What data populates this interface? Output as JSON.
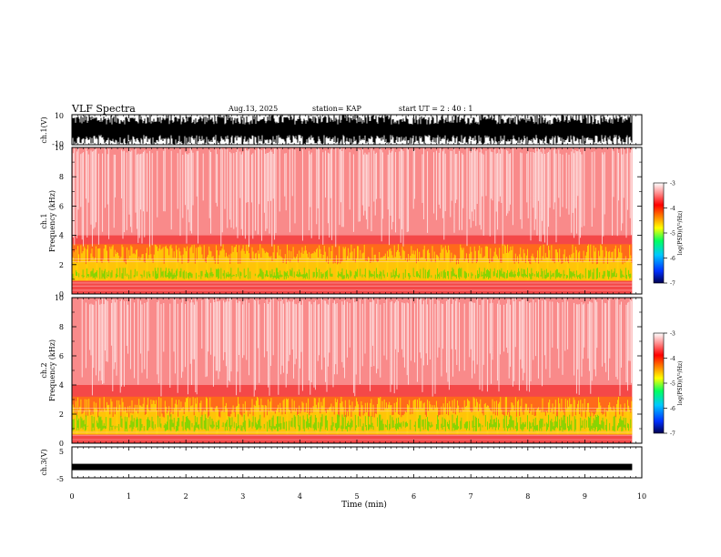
{
  "header": {
    "title": "VLF Spectra",
    "date": "Aug.13, 2025",
    "station": "station= KAP",
    "start": "start  UT =   2 : 40 : 1"
  },
  "chart_data": {
    "type": "heatmap",
    "time_axis": {
      "label": "Time  (min)",
      "range": [
        0,
        10
      ],
      "ticks": [
        "0",
        "1",
        "2",
        "3",
        "4",
        "5",
        "6",
        "7",
        "8",
        "9",
        "10"
      ],
      "data_end": 9.83
    },
    "panels": [
      {
        "id": "ch1-waveform",
        "type": "line",
        "ylabel": "ch.1(V)",
        "ylim": [
          -10,
          10
        ],
        "tick_labels": [
          "10",
          "-10"
        ],
        "description_values": {
          "amplitude_min": -10,
          "amplitude_max": 10
        }
      },
      {
        "id": "ch1-spectrogram",
        "type": "heatmap",
        "ylabel": "ch.1\nFrequency  (kHz)",
        "ylabel_lines": [
          "ch.1",
          "Frequency  (kHz)"
        ],
        "ylim": [
          0,
          10
        ],
        "tick_labels": [
          "10",
          "8",
          "6",
          "4",
          "2",
          "0"
        ],
        "yellow_band_khz": [
          0.9,
          3.4
        ],
        "green_band_khz": [
          1.0,
          1.8
        ]
      },
      {
        "id": "ch2-spectrogram",
        "type": "heatmap",
        "ylabel_lines": [
          "ch.2",
          "Frequency  (kHz)"
        ],
        "ylim": [
          0,
          10
        ],
        "tick_labels": [
          "10",
          "8",
          "6",
          "4",
          "2",
          "0"
        ],
        "yellow_band_khz": [
          0.6,
          3.2
        ],
        "green_band_khz": [
          0.8,
          2.0
        ]
      },
      {
        "id": "ch3-waveform",
        "type": "line",
        "ylabel": "ch.3(V)",
        "ylim": [
          -5,
          5
        ],
        "tick_labels": [
          "5",
          "-5"
        ],
        "signal_level_v": -1.5
      }
    ],
    "colorbar": {
      "label": "log(PSD)(V²/Hz)",
      "range": [
        -7,
        -3
      ],
      "ticks": [
        "-3",
        "-4",
        "-5",
        "-6",
        "-7"
      ],
      "colors": [
        "#000080",
        "#0050ff",
        "#00c8ff",
        "#00ff40",
        "#ffff00",
        "#ff8000",
        "#ff0000",
        "#ff8080",
        "#ffffff"
      ]
    }
  }
}
